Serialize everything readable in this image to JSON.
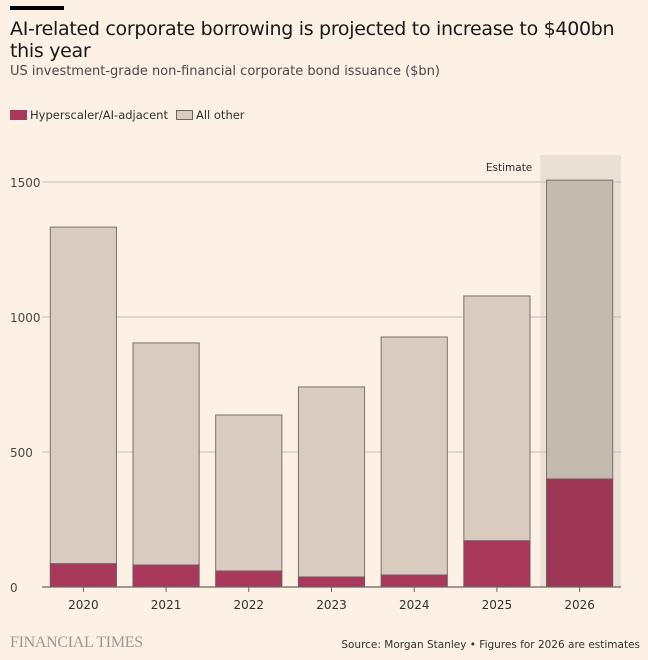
{
  "chart_data": {
    "type": "bar",
    "stacked": true,
    "title": "AI-related corporate borrowing is projected to increase to $400bn this year",
    "subtitle": "US investment-grade non-financial corporate bond issuance ($bn)",
    "categories": [
      "2020",
      "2021",
      "2022",
      "2023",
      "2024",
      "2025",
      "2026"
    ],
    "series": [
      {
        "name": "Hyperscaler/AI-adjacent",
        "color": "#a8385c",
        "values": [
          86,
          81,
          59,
          37,
          44,
          171,
          400
        ]
      },
      {
        "name": "All other",
        "color": "#d9cbc0",
        "values": [
          1247,
          823,
          578,
          704,
          882,
          907,
          1107
        ]
      }
    ],
    "ylim": [
      0,
      1600
    ],
    "yticks": [
      "0",
      "500",
      "1000",
      "1500"
    ],
    "ytick_values": [
      0,
      500,
      1000,
      1500
    ],
    "grid": true,
    "legend": "top-left",
    "annotation": "Estimate",
    "estimate_category": "2026",
    "estimate_colors": {
      "ai": "#9e3656",
      "other": "#c5bab0",
      "shade": "#ebe0d5"
    },
    "background": "#fdf1e5",
    "source": "Source: Morgan Stanley • Figures for 2026 are estimates",
    "brand": "FINANCIAL TIMES"
  }
}
